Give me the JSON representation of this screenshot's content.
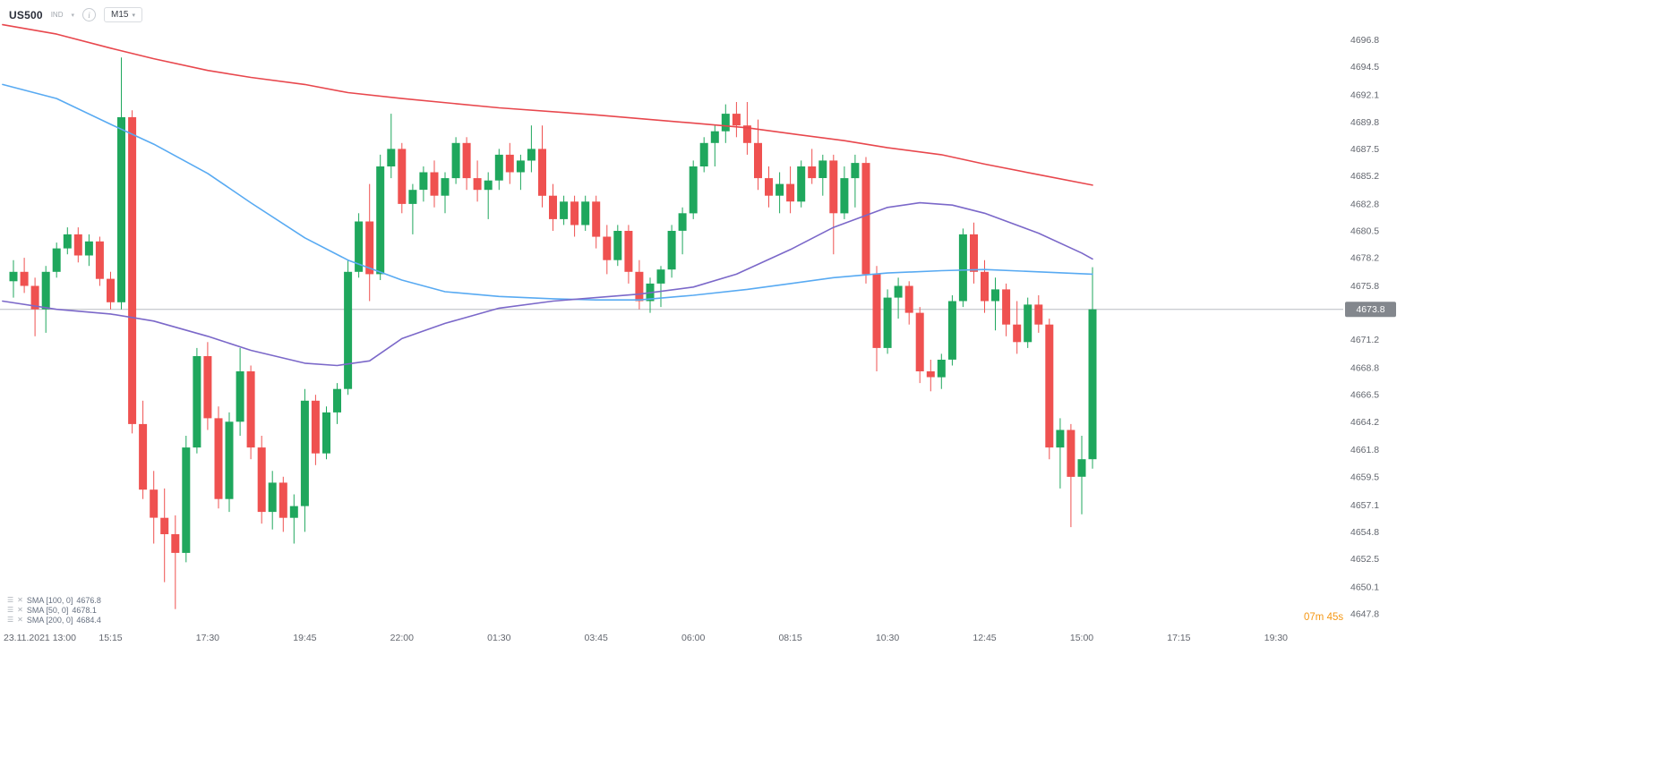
{
  "header": {
    "symbol": "US500",
    "instrument_type": "IND",
    "timeframe": "M15"
  },
  "chart_data": {
    "type": "candlestick",
    "symbol": "US500",
    "timeframe": "M15",
    "current_price": "4673.8",
    "countdown": "07m 45s",
    "colors": {
      "up": "#1fa75d",
      "down": "#ef5150",
      "price_line": "#b8bbc2",
      "price_tag_bg": "#83878d",
      "countdown": "#f59816",
      "axis_text": "#62666e"
    },
    "y_axis": {
      "range": [
        4646.5,
        4698.3
      ],
      "labels": [
        "4696.8",
        "4694.5",
        "4692.1",
        "4689.8",
        "4687.5",
        "4685.2",
        "4682.8",
        "4680.5",
        "4678.2",
        "4675.8",
        "4671.2",
        "4668.8",
        "4666.5",
        "4664.2",
        "4661.8",
        "4659.5",
        "4657.1",
        "4654.8",
        "4652.5",
        "4650.1",
        "4647.8"
      ]
    },
    "x_axis": {
      "labels": [
        {
          "text": "23.11.2021 13:00",
          "slot": 0
        },
        {
          "text": "15:15",
          "slot": 9
        },
        {
          "text": "17:30",
          "slot": 18
        },
        {
          "text": "19:45",
          "slot": 27
        },
        {
          "text": "22:00",
          "slot": 36
        },
        {
          "text": "01:30",
          "slot": 45
        },
        {
          "text": "03:45",
          "slot": 54
        },
        {
          "text": "06:00",
          "slot": 63
        },
        {
          "text": "08:15",
          "slot": 72
        },
        {
          "text": "10:30",
          "slot": 81
        },
        {
          "text": "12:45",
          "slot": 90
        },
        {
          "text": "15:00",
          "slot": 99
        },
        {
          "text": "17:15",
          "slot": 108
        },
        {
          "text": "19:30",
          "slot": 117
        }
      ]
    },
    "candles": [
      [
        4676.2,
        4678.0,
        4674.8,
        4677.0
      ],
      [
        4677.0,
        4678.2,
        4675.2,
        4675.8
      ],
      [
        4675.8,
        4676.5,
        4671.5,
        4673.8
      ],
      [
        4673.8,
        4677.5,
        4671.8,
        4677.0
      ],
      [
        4677.0,
        4679.5,
        4676.5,
        4679.0
      ],
      [
        4679.0,
        4680.8,
        4678.5,
        4680.2
      ],
      [
        4680.2,
        4680.8,
        4677.8,
        4678.4
      ],
      [
        4678.4,
        4680.2,
        4677.5,
        4679.6
      ],
      [
        4679.6,
        4680.0,
        4675.8,
        4676.4
      ],
      [
        4676.4,
        4677.0,
        4673.8,
        4674.4
      ],
      [
        4674.4,
        4695.3,
        4673.8,
        4690.2
      ],
      [
        4690.2,
        4690.8,
        4663.2,
        4664.0
      ],
      [
        4664.0,
        4666.0,
        4657.6,
        4658.4
      ],
      [
        4658.4,
        4660.0,
        4653.8,
        4656.0
      ],
      [
        4656.0,
        4658.5,
        4650.5,
        4654.6
      ],
      [
        4654.6,
        4656.2,
        4648.2,
        4653.0
      ],
      [
        4653.0,
        4663.0,
        4652.2,
        4662.0
      ],
      [
        4662.0,
        4670.5,
        4661.5,
        4669.8
      ],
      [
        4669.8,
        4671.0,
        4663.5,
        4664.5
      ],
      [
        4664.5,
        4665.5,
        4656.8,
        4657.6
      ],
      [
        4657.6,
        4665.0,
        4656.5,
        4664.2
      ],
      [
        4664.2,
        4670.5,
        4663.0,
        4668.5
      ],
      [
        4668.5,
        4669.0,
        4661.0,
        4662.0
      ],
      [
        4662.0,
        4663.0,
        4655.5,
        4656.5
      ],
      [
        4656.5,
        4660.0,
        4655.0,
        4659.0
      ],
      [
        4659.0,
        4659.5,
        4654.8,
        4656.0
      ],
      [
        4656.0,
        4658.0,
        4653.8,
        4657.0
      ],
      [
        4657.0,
        4667.0,
        4654.8,
        4666.0
      ],
      [
        4666.0,
        4666.5,
        4660.5,
        4661.5
      ],
      [
        4661.5,
        4665.5,
        4661.0,
        4665.0
      ],
      [
        4665.0,
        4667.5,
        4664.0,
        4667.0
      ],
      [
        4667.0,
        4678.0,
        4666.5,
        4677.0
      ],
      [
        4677.0,
        4682.0,
        4676.5,
        4681.3
      ],
      [
        4681.3,
        4684.5,
        4674.5,
        4676.8
      ],
      [
        4676.8,
        4687.0,
        4676.3,
        4686.0
      ],
      [
        4686.0,
        4690.5,
        4685.0,
        4687.5
      ],
      [
        4687.5,
        4688.0,
        4682.0,
        4682.8
      ],
      [
        4682.8,
        4684.5,
        4680.2,
        4684.0
      ],
      [
        4684.0,
        4686.0,
        4683.0,
        4685.5
      ],
      [
        4685.5,
        4686.5,
        4682.5,
        4683.5
      ],
      [
        4683.5,
        4685.5,
        4682.0,
        4685.0
      ],
      [
        4685.0,
        4688.5,
        4684.5,
        4688.0
      ],
      [
        4688.0,
        4688.5,
        4684.0,
        4685.0
      ],
      [
        4685.0,
        4686.5,
        4683.0,
        4684.0
      ],
      [
        4684.0,
        4685.5,
        4681.5,
        4684.8
      ],
      [
        4684.8,
        4687.5,
        4684.0,
        4687.0
      ],
      [
        4687.0,
        4688.0,
        4684.5,
        4685.5
      ],
      [
        4685.5,
        4687.0,
        4684.0,
        4686.5
      ],
      [
        4686.5,
        4689.5,
        4685.5,
        4687.5
      ],
      [
        4687.5,
        4689.5,
        4682.5,
        4683.5
      ],
      [
        4683.5,
        4684.5,
        4680.5,
        4681.5
      ],
      [
        4681.5,
        4683.5,
        4681.0,
        4683.0
      ],
      [
        4683.0,
        4683.5,
        4680.0,
        4681.0
      ],
      [
        4681.0,
        4683.5,
        4680.5,
        4683.0
      ],
      [
        4683.0,
        4683.5,
        4679.0,
        4680.0
      ],
      [
        4680.0,
        4681.0,
        4676.8,
        4678.0
      ],
      [
        4678.0,
        4681.0,
        4677.5,
        4680.5
      ],
      [
        4680.5,
        4681.0,
        4676.0,
        4677.0
      ],
      [
        4677.0,
        4678.0,
        4673.8,
        4674.5
      ],
      [
        4674.5,
        4676.5,
        4673.5,
        4676.0
      ],
      [
        4676.0,
        4677.5,
        4674.0,
        4677.2
      ],
      [
        4677.2,
        4681.0,
        4676.5,
        4680.5
      ],
      [
        4680.5,
        4682.5,
        4678.5,
        4682.0
      ],
      [
        4682.0,
        4686.5,
        4681.5,
        4686.0
      ],
      [
        4686.0,
        4688.5,
        4685.5,
        4688.0
      ],
      [
        4688.0,
        4689.5,
        4686.0,
        4689.0
      ],
      [
        4689.0,
        4691.3,
        4688.0,
        4690.5
      ],
      [
        4690.5,
        4691.5,
        4688.5,
        4689.5
      ],
      [
        4689.5,
        4691.5,
        4687.0,
        4688.0
      ],
      [
        4688.0,
        4690.0,
        4684.0,
        4685.0
      ],
      [
        4685.0,
        4686.0,
        4682.5,
        4683.5
      ],
      [
        4683.5,
        4685.5,
        4682.0,
        4684.5
      ],
      [
        4684.5,
        4686.0,
        4682.0,
        4683.0
      ],
      [
        4683.0,
        4686.5,
        4682.5,
        4686.0
      ],
      [
        4686.0,
        4687.5,
        4684.5,
        4685.0
      ],
      [
        4685.0,
        4687.0,
        4683.5,
        4686.5
      ],
      [
        4686.5,
        4687.0,
        4678.5,
        4682.0
      ],
      [
        4682.0,
        4686.0,
        4681.5,
        4685.0
      ],
      [
        4685.0,
        4687.0,
        4682.5,
        4686.3
      ],
      [
        4686.3,
        4686.8,
        4676.0,
        4676.8
      ],
      [
        4676.8,
        4677.5,
        4668.5,
        4670.5
      ],
      [
        4670.5,
        4675.5,
        4670.0,
        4674.8
      ],
      [
        4674.8,
        4676.5,
        4673.0,
        4675.8
      ],
      [
        4675.8,
        4676.2,
        4672.5,
        4673.5
      ],
      [
        4673.5,
        4674.0,
        4667.5,
        4668.5
      ],
      [
        4668.5,
        4669.5,
        4666.8,
        4668.0
      ],
      [
        4668.0,
        4670.0,
        4667.0,
        4669.5
      ],
      [
        4669.5,
        4675.0,
        4669.0,
        4674.5
      ],
      [
        4674.5,
        4680.7,
        4674.0,
        4680.2
      ],
      [
        4680.2,
        4681.2,
        4676.0,
        4677.0
      ],
      [
        4677.0,
        4678.0,
        4673.5,
        4674.5
      ],
      [
        4674.5,
        4676.5,
        4672.0,
        4675.5
      ],
      [
        4675.5,
        4676.0,
        4671.5,
        4672.5
      ],
      [
        4672.5,
        4674.5,
        4670.0,
        4671.0
      ],
      [
        4671.0,
        4674.8,
        4670.5,
        4674.2
      ],
      [
        4674.2,
        4675.0,
        4671.8,
        4672.5
      ],
      [
        4672.5,
        4673.0,
        4661.0,
        4662.0
      ],
      [
        4662.0,
        4664.5,
        4658.5,
        4663.5
      ],
      [
        4663.5,
        4664.0,
        4655.2,
        4659.5
      ],
      [
        4659.5,
        4663.0,
        4656.3,
        4661.0
      ],
      [
        4661.0,
        4677.4,
        4660.2,
        4673.8
      ]
    ],
    "overlays": [
      {
        "name": "SMA [100, 0]",
        "value": "4676.8",
        "color": "#58aaf2",
        "points": [
          [
            -1,
            4693.0
          ],
          [
            4,
            4691.8
          ],
          [
            9,
            4689.6
          ],
          [
            13,
            4687.9
          ],
          [
            18,
            4685.4
          ],
          [
            22,
            4682.9
          ],
          [
            27,
            4679.9
          ],
          [
            31,
            4678.0
          ],
          [
            36,
            4676.3
          ],
          [
            40,
            4675.3
          ],
          [
            45,
            4674.9
          ],
          [
            50,
            4674.7
          ],
          [
            54,
            4674.6
          ],
          [
            58,
            4674.6
          ],
          [
            63,
            4675.0
          ],
          [
            68,
            4675.5
          ],
          [
            72,
            4676.0
          ],
          [
            76,
            4676.5
          ],
          [
            81,
            4676.9
          ],
          [
            86,
            4677.1
          ],
          [
            90,
            4677.2
          ],
          [
            95,
            4677.0
          ],
          [
            100,
            4676.8
          ]
        ]
      },
      {
        "name": "SMA [50, 0]",
        "value": "4678.1",
        "color": "#7b68c9",
        "points": [
          [
            -1,
            4674.5
          ],
          [
            4,
            4673.8
          ],
          [
            9,
            4673.4
          ],
          [
            13,
            4672.8
          ],
          [
            18,
            4671.5
          ],
          [
            22,
            4670.3
          ],
          [
            27,
            4669.2
          ],
          [
            30,
            4669.0
          ],
          [
            33,
            4669.4
          ],
          [
            36,
            4671.3
          ],
          [
            40,
            4672.6
          ],
          [
            45,
            4673.9
          ],
          [
            50,
            4674.5
          ],
          [
            54,
            4674.8
          ],
          [
            58,
            4675.1
          ],
          [
            63,
            4675.7
          ],
          [
            67,
            4676.8
          ],
          [
            72,
            4678.9
          ],
          [
            76,
            4680.8
          ],
          [
            81,
            4682.5
          ],
          [
            84,
            4682.9
          ],
          [
            87,
            4682.7
          ],
          [
            90,
            4682.0
          ],
          [
            95,
            4680.3
          ],
          [
            99,
            4678.6
          ],
          [
            100,
            4678.1
          ]
        ]
      },
      {
        "name": "SMA [200, 0]",
        "value": "4684.4",
        "color": "#e8474d",
        "points": [
          [
            -1,
            4698.1
          ],
          [
            4,
            4697.3
          ],
          [
            9,
            4696.1
          ],
          [
            13,
            4695.2
          ],
          [
            18,
            4694.2
          ],
          [
            22,
            4693.6
          ],
          [
            27,
            4693.0
          ],
          [
            31,
            4692.3
          ],
          [
            36,
            4691.8
          ],
          [
            45,
            4691.0
          ],
          [
            54,
            4690.4
          ],
          [
            63,
            4689.7
          ],
          [
            68,
            4689.3
          ],
          [
            72,
            4688.8
          ],
          [
            77,
            4688.2
          ],
          [
            81,
            4687.6
          ],
          [
            86,
            4687.0
          ],
          [
            90,
            4686.2
          ],
          [
            95,
            4685.3
          ],
          [
            100,
            4684.4
          ]
        ]
      }
    ]
  }
}
